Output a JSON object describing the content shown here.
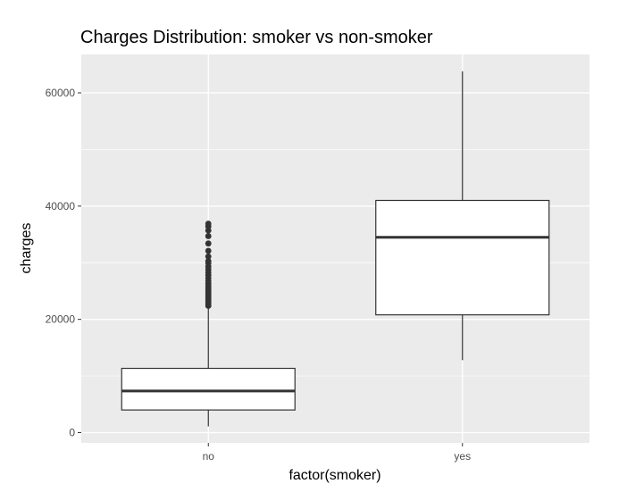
{
  "chart_data": {
    "type": "boxplot",
    "title": "Charges Distribution: smoker vs non-smoker",
    "xlabel": "factor(smoker)",
    "ylabel": "charges",
    "ylim": [
      -2000,
      66000
    ],
    "y_ticks": [
      0,
      20000,
      40000,
      60000
    ],
    "y_tick_labels": [
      "0",
      "20000",
      "40000",
      "60000"
    ],
    "categories": [
      "no",
      "yes"
    ],
    "boxes": [
      {
        "category": "no",
        "whisker_low": 1100,
        "q1": 4000,
        "median": 7350,
        "q3": 11350,
        "whisker_high": 23700,
        "outliers": [
          22400,
          22700,
          23000,
          23300,
          23600,
          23900,
          24200,
          24500,
          24800,
          25100,
          25500,
          25900,
          26300,
          26800,
          27300,
          27800,
          28300,
          28800,
          29300,
          29900,
          30300,
          31100,
          32100,
          33400,
          34700,
          35700,
          36400,
          36900
        ]
      },
      {
        "category": "yes",
        "whisker_low": 12800,
        "q1": 20800,
        "median": 34500,
        "q3": 41000,
        "whisker_high": 63800,
        "outliers": []
      }
    ],
    "panel_background": "#ebebeb",
    "grid": true,
    "grid_color": "#ffffff",
    "box_fill": "#ffffff",
    "line_color": "#333333",
    "outlier_color": "#333333"
  }
}
